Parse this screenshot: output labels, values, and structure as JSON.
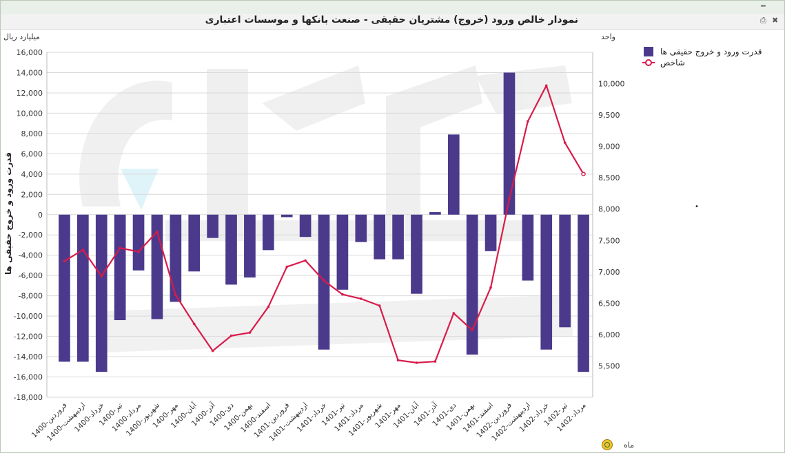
{
  "chart_title": "نمودار خالص ورود (خروج) مشتریان حقیقی - صنعت بانکها و موسسات اعتباری",
  "left_unit": "میلیارد ریال",
  "right_unit": "واحد",
  "x_unit": "ماه",
  "colors": {
    "bar": "#4b3a8c",
    "line": "#d81b4a",
    "grid": "#d9d9d9"
  },
  "icons": {
    "print": "printer-icon",
    "export": "export-excel-icon",
    "minimize": "minimize-icon",
    "refresh": "refresh-icon"
  },
  "chart_data": {
    "type": "bar",
    "ylabel": "قدرت ورود و خروج حقیقی ها",
    "ylim": [
      -18000,
      16000
    ],
    "y2lim": [
      5000,
      10500
    ],
    "y_ticks": [
      "16,000",
      "14,000",
      "12,000",
      "10,000",
      "8,000",
      "6,000",
      "4,000",
      "2,000",
      "0",
      "-2,000",
      "-4,000",
      "-6,000",
      "-8,000",
      "-10,000",
      "-12,000",
      "-14,000",
      "-16,000",
      "-18,000"
    ],
    "y2_ticks": [
      "10,000",
      "9,500",
      "9,000",
      "8,500",
      "8,000",
      "7,500",
      "7,000",
      "6,500",
      "6,000",
      "5,500"
    ],
    "categories": [
      "1400-فروردین",
      "1400-اردیبهشت",
      "1400-خرداد",
      "1400-تیر",
      "1400-مرداد",
      "1400-شهریور",
      "1400-مهر",
      "1400-آبان",
      "1400-آذر",
      "1400-دی",
      "1400-بهمن",
      "1400-اسفند",
      "1401-فروردین",
      "1401-اردیبهشت",
      "1401-خرداد",
      "1401-تیر",
      "1401-مرداد",
      "1401-شهریور",
      "1401-مهر",
      "1401-آبان",
      "1401-آذر",
      "1401-دی",
      "1401-بهمن",
      "1401-اسفند",
      "1402-فروردین",
      "1402-اردیبهشت",
      "1402-خرداد",
      "1402-تیر",
      "1402-مرداد"
    ],
    "series": [
      {
        "name": "قدرت ورود و خروج حقیقی ها",
        "type": "bar",
        "axis": "left",
        "values": [
          -14500,
          -14500,
          -15500,
          -10400,
          -5500,
          -10300,
          -8600,
          -5600,
          -2300,
          -6900,
          -6200,
          -3500,
          -250,
          -2200,
          -13300,
          -7400,
          -2700,
          -4400,
          -4400,
          -7800,
          250,
          7900,
          -13800,
          -3600,
          14000,
          -6500,
          -13300,
          -11100,
          -15500
        ]
      },
      {
        "name": "شاخص",
        "type": "line",
        "axis": "right",
        "values": [
          7170,
          7350,
          6930,
          7380,
          7320,
          7640,
          6630,
          6170,
          5740,
          5980,
          6030,
          6440,
          7080,
          7180,
          6860,
          6640,
          6570,
          6460,
          5590,
          5550,
          5570,
          6340,
          6070,
          6750,
          8160,
          9400,
          9970,
          9060,
          8560
        ]
      }
    ]
  }
}
